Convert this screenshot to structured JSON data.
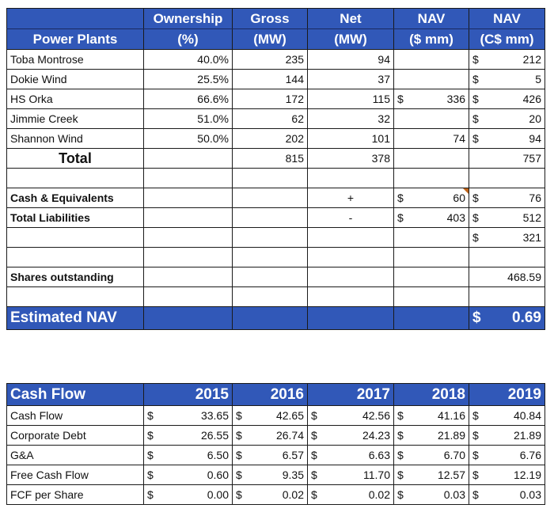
{
  "nav_table": {
    "headers_top": [
      "",
      "Ownership",
      "Gross",
      "Net",
      "NAV",
      "NAV"
    ],
    "headers_bottom": [
      "Power Plants",
      "(%)",
      "(MW)",
      "(MW)",
      "($ mm)",
      "(C$ mm)"
    ],
    "plants": [
      {
        "name": "Toba Montrose",
        "ownership": "40.0%",
        "gross": "235",
        "net": "94",
        "nav_usd_sign": "",
        "nav_usd": "",
        "nav_cad_sign": "$",
        "nav_cad": "212"
      },
      {
        "name": "Dokie Wind",
        "ownership": "25.5%",
        "gross": "144",
        "net": "37",
        "nav_usd_sign": "",
        "nav_usd": "",
        "nav_cad_sign": "$",
        "nav_cad": "5"
      },
      {
        "name": "HS Orka",
        "ownership": "66.6%",
        "gross": "172",
        "net": "115",
        "nav_usd_sign": "$",
        "nav_usd": "336",
        "nav_cad_sign": "$",
        "nav_cad": "426"
      },
      {
        "name": "Jimmie Creek",
        "ownership": "51.0%",
        "gross": "62",
        "net": "32",
        "nav_usd_sign": "",
        "nav_usd": "",
        "nav_cad_sign": "$",
        "nav_cad": "20"
      },
      {
        "name": "Shannon Wind",
        "ownership": "50.0%",
        "gross": "202",
        "net": "101",
        "nav_usd_sign": "",
        "nav_usd": "74",
        "nav_cad_sign": "$",
        "nav_cad": "94"
      }
    ],
    "total": {
      "label": "Total",
      "gross": "815",
      "net": "378",
      "nav_cad": "757"
    },
    "cash": {
      "label": "Cash & Equivalents",
      "op": "+",
      "usd_sign": "$",
      "usd": "60",
      "cad_sign": "$",
      "cad": "76"
    },
    "liabilities": {
      "label": "Total Liabilities",
      "op": "-",
      "usd_sign": "$",
      "usd": "403",
      "cad_sign": "$",
      "cad": "512"
    },
    "net_value": {
      "cad_sign": "$",
      "cad": "321"
    },
    "shares": {
      "label": "Shares outstanding",
      "value": "468.59"
    },
    "estimated_nav": {
      "label": "Estimated NAV",
      "sign": "$",
      "value": "0.69"
    }
  },
  "cash_flow_table": {
    "title": "Cash Flow",
    "years": [
      "2015",
      "2016",
      "2017",
      "2018",
      "2019"
    ],
    "currency_symbol": "$",
    "rows": [
      {
        "label": "Cash Flow",
        "values": [
          "33.65",
          "42.65",
          "42.56",
          "41.16",
          "40.84"
        ]
      },
      {
        "label": "Corporate Debt",
        "values": [
          "26.55",
          "26.74",
          "24.23",
          "21.89",
          "21.89"
        ]
      },
      {
        "label": "G&A",
        "values": [
          "6.50",
          "6.57",
          "6.63",
          "6.70",
          "6.76"
        ]
      },
      {
        "label": "Free Cash Flow",
        "values": [
          "0.60",
          "9.35",
          "11.70",
          "12.57",
          "12.19"
        ]
      },
      {
        "label": "FCF per Share",
        "values": [
          "0.00",
          "0.02",
          "0.02",
          "0.03",
          "0.03"
        ]
      }
    ]
  },
  "colors": {
    "header_blue": "#3158b8",
    "comment_marker": "#c0651a"
  }
}
